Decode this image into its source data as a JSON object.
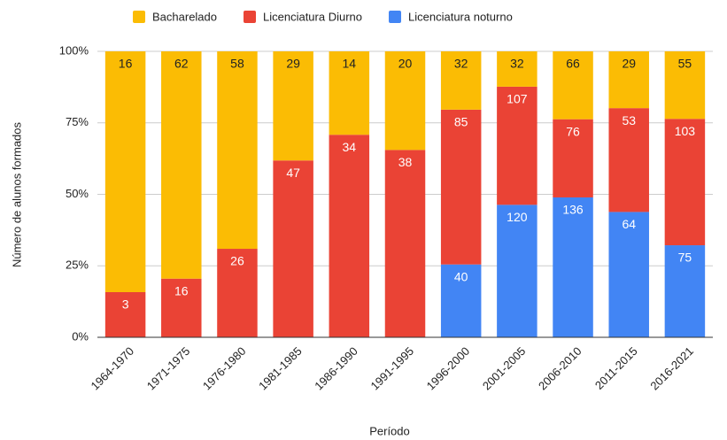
{
  "chart_data": {
    "type": "stacked_bar_percent",
    "x_label": "Período",
    "y_label": "Número de alunos formados",
    "categories": [
      "1964-1970",
      "1971-1975",
      "1976-1980",
      "1981-1985",
      "1986-1990",
      "1991-1995",
      "1996-2000",
      "2001-2005",
      "2006-2010",
      "2011-2015",
      "2016-2021"
    ],
    "series": [
      {
        "name": "Licenciatura noturno",
        "color": "#4285f4",
        "values": [
          null,
          null,
          null,
          null,
          null,
          null,
          40,
          120,
          136,
          64,
          75
        ]
      },
      {
        "name": "Licenciatura Diurno",
        "color": "#ea4335",
        "values": [
          3,
          16,
          26,
          47,
          34,
          38,
          85,
          107,
          76,
          53,
          103
        ]
      },
      {
        "name": "Bacharelado",
        "color": "#fbbc04",
        "values": [
          16,
          62,
          58,
          29,
          14,
          20,
          32,
          32,
          66,
          29,
          55
        ]
      }
    ],
    "legend_order": [
      2,
      1,
      0
    ],
    "ylim": [
      0,
      100
    ],
    "yticks": [
      {
        "value": 0,
        "label": "0%"
      },
      {
        "value": 25,
        "label": "25%"
      },
      {
        "value": 50,
        "label": "50%"
      },
      {
        "value": 75,
        "label": "75%"
      },
      {
        "value": 100,
        "label": "100%"
      }
    ],
    "grid": true,
    "legend": "top"
  }
}
